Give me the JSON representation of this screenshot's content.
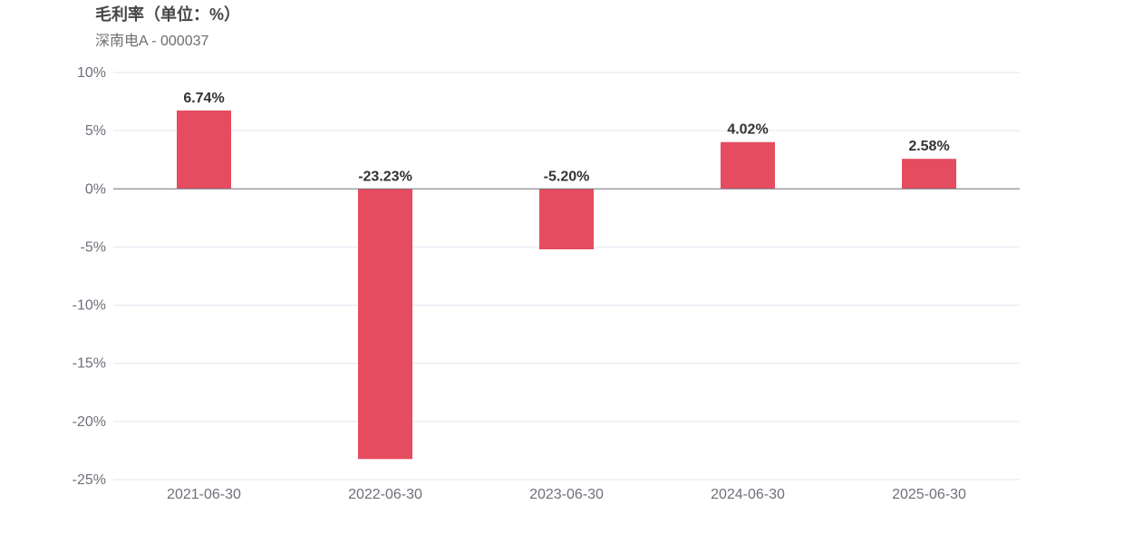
{
  "chart_data": {
    "type": "bar",
    "title": "毛利率（单位：%）",
    "subtitle": "深南电A - 000037",
    "categories": [
      "2021-06-30",
      "2022-06-30",
      "2023-06-30",
      "2024-06-30",
      "2025-06-30"
    ],
    "values": [
      6.74,
      -23.23,
      -5.2,
      4.02,
      2.58
    ],
    "data_labels": [
      "6.74%",
      "-23.23%",
      "-5.20%",
      "4.02%",
      "2.58%"
    ],
    "ylim": [
      -25,
      10
    ],
    "yticks": [
      10,
      5,
      0,
      -5,
      -10,
      -15,
      -20,
      -25
    ],
    "ytick_labels": [
      "10%",
      "5%",
      "0%",
      "-5%",
      "-10%",
      "-15%",
      "-20%",
      "-25%"
    ],
    "grid": true,
    "bar_color": "#e64c5f",
    "grid_color": "#e0e6f1",
    "zero_line_color": "#6e7079"
  }
}
